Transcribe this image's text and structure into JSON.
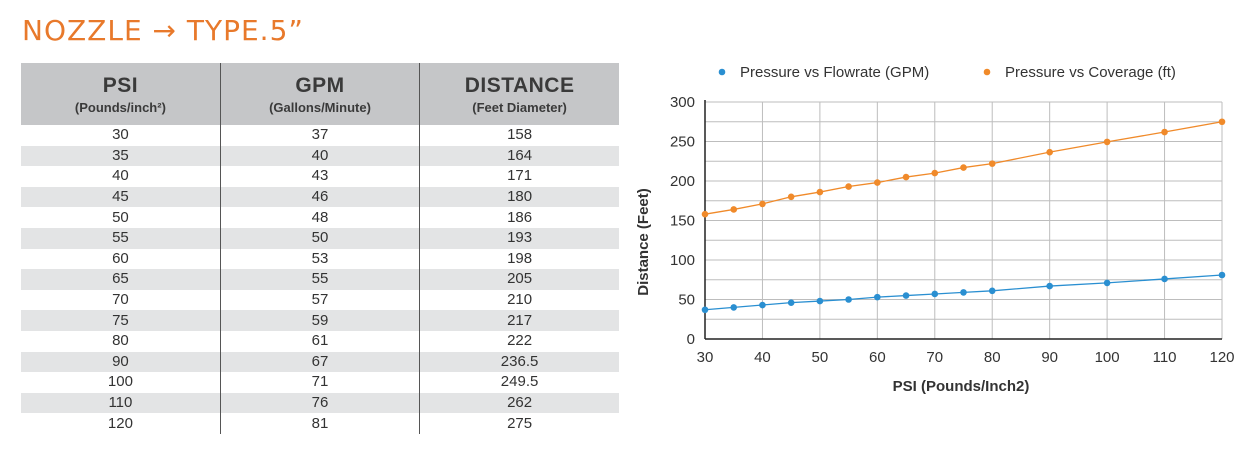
{
  "title": "NOZZLE → TYPE.5”",
  "table": {
    "columns": [
      {
        "name": "PSI",
        "sub": "(Pounds/inch²)"
      },
      {
        "name": "GPM",
        "sub": "(Gallons/Minute)"
      },
      {
        "name": "DISTANCE",
        "sub": "(Feet Diameter)"
      }
    ],
    "rows": [
      [
        "30",
        "37",
        "158"
      ],
      [
        "35",
        "40",
        "164"
      ],
      [
        "40",
        "43",
        "171"
      ],
      [
        "45",
        "46",
        "180"
      ],
      [
        "50",
        "48",
        "186"
      ],
      [
        "55",
        "50",
        "193"
      ],
      [
        "60",
        "53",
        "198"
      ],
      [
        "65",
        "55",
        "205"
      ],
      [
        "70",
        "57",
        "210"
      ],
      [
        "75",
        "59",
        "217"
      ],
      [
        "80",
        "61",
        "222"
      ],
      [
        "90",
        "67",
        "236.5"
      ],
      [
        "100",
        "71",
        "249.5"
      ],
      [
        "110",
        "76",
        "262"
      ],
      [
        "120",
        "81",
        "275"
      ]
    ]
  },
  "chart_data": {
    "type": "scatter",
    "x": [
      30,
      35,
      40,
      45,
      50,
      55,
      60,
      65,
      70,
      75,
      80,
      90,
      100,
      110,
      120
    ],
    "series": [
      {
        "name": "Pressure vs Flowrate (GPM)",
        "color": "#2a8fd1",
        "values": [
          37,
          40,
          43,
          46,
          48,
          50,
          53,
          55,
          57,
          59,
          61,
          67,
          71,
          76,
          81
        ]
      },
      {
        "name": "Pressure vs Coverage (ft)",
        "color": "#f08a2a",
        "values": [
          158,
          164,
          171,
          180,
          186,
          193,
          198,
          205,
          210,
          217,
          222,
          236.5,
          249.5,
          262,
          275
        ]
      }
    ],
    "xlabel": "PSI (Pounds/Inch2)",
    "ylabel": "Distance (Feet)",
    "xlim": [
      30,
      120
    ],
    "ylim": [
      0,
      300
    ],
    "xticks": [
      30,
      40,
      50,
      60,
      70,
      80,
      90,
      100,
      110,
      120
    ],
    "yticks": [
      0,
      50,
      100,
      150,
      200,
      250,
      300
    ],
    "grid": true,
    "legend": "top"
  }
}
